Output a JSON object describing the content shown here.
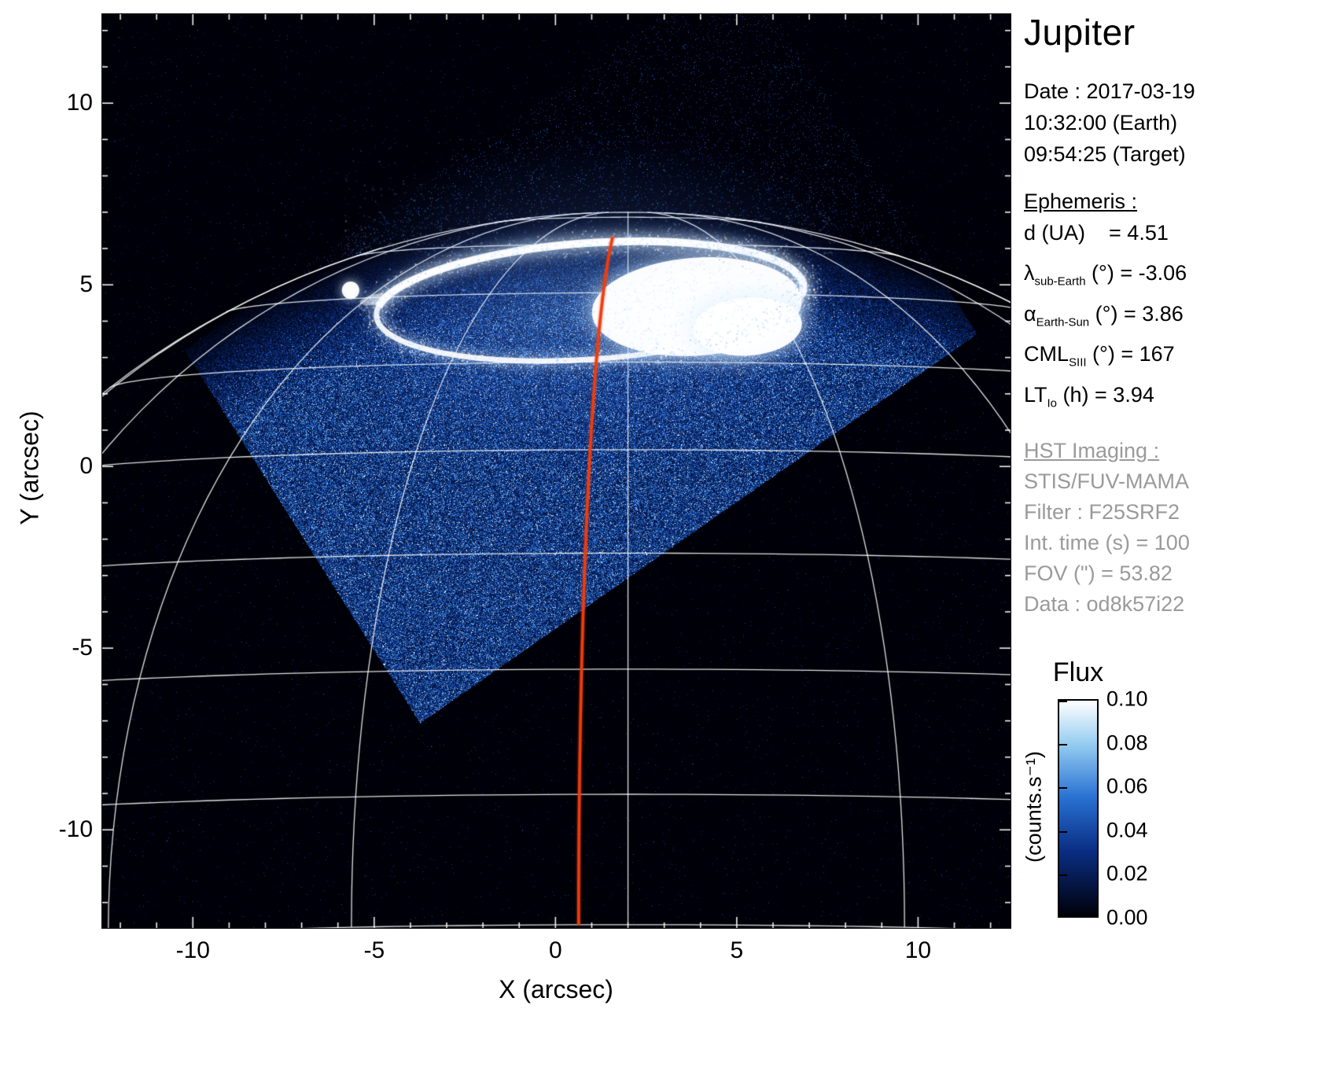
{
  "panel": {
    "title": "Jupiter",
    "date_lines": [
      "Date : 2017-03-19",
      "10:32:00 (Earth)",
      "09:54:25 (Target)"
    ],
    "ephemeris": {
      "header": "Ephemeris :",
      "rows": [
        {
          "sym": "d",
          "sub": "",
          "rest": " (UA)    = 4.51"
        },
        {
          "sym": "λ",
          "sub": "sub-Earth",
          "rest": " (°) = -3.06"
        },
        {
          "sym": "α",
          "sub": "Earth-Sun",
          "rest": " (°) = 3.86"
        },
        {
          "sym": "CML",
          "sub": "SIII",
          "rest": " (°) = 167"
        },
        {
          "sym": "LT",
          "sub": "Io",
          "rest": " (h) = 3.94"
        }
      ]
    },
    "hst": {
      "header": "HST Imaging :",
      "lines": [
        "STIS/FUV-MAMA",
        "Filter : F25SRF2",
        "Int. time (s) = 100",
        "FOV (\") = 53.82",
        "Data : od8k57i22"
      ]
    }
  },
  "chart_data": {
    "type": "heatmap",
    "title": "Jupiter",
    "xlabel": "X (arcsec)",
    "ylabel": "Y (arcsec)",
    "axes": {
      "xmin": -12.5,
      "xmax": 12.55,
      "ymin": -12.7,
      "ymax": 12.45,
      "x_ticks": [
        -10,
        -5,
        0,
        5,
        10
      ],
      "y_ticks": [
        10,
        5,
        0,
        -5,
        -10
      ],
      "minor_tick_step": 1
    },
    "colorbar": {
      "title": "Flux",
      "unit": "(counts.s⁻¹)",
      "tick_labels": [
        "0.10",
        "0.08",
        "0.06",
        "0.04",
        "0.02",
        "0.00"
      ],
      "min": 0.0,
      "max": 0.1
    },
    "colormap": {
      "stops": [
        [
          0,
          "#000008"
        ],
        [
          0.3,
          "#0a2d82"
        ],
        [
          0.55,
          "#2871d2"
        ],
        [
          0.8,
          "#96cdf0"
        ],
        [
          1,
          "#ffffff"
        ]
      ]
    },
    "background": "#000000",
    "planet": {
      "center_x": 2.0,
      "center_y": -13.8,
      "r_eq": 22.3,
      "r_pol": 20.8,
      "subearth_lat_deg": -3.06,
      "parallel_step_deg": 10,
      "meridian_step_deg": 20,
      "grid_color": "rgba(255,255,255,0.88)"
    },
    "cml_meridian": {
      "lon_offset_deg": -3.5,
      "lat_max_deg": 72,
      "color": "#ee3d0e"
    },
    "footprint": {
      "corners": [
        [
          -3.73,
          -7.07
        ],
        [
          11.63,
          3.64
        ],
        [
          5.13,
          13.92
        ],
        [
          -10.23,
          3.21
        ]
      ]
    },
    "aurora": {
      "center_x": 0.95,
      "center_y": 4.55,
      "semi_major": 5.9,
      "semi_minor": 1.6,
      "tilt_deg": -4,
      "blob": {
        "x": 3.9,
        "y": 4.4,
        "a": 2.9,
        "b": 1.35
      },
      "blob2": {
        "x": 5.3,
        "y": 3.85,
        "a": 1.5,
        "b": 0.8
      },
      "io_spot": {
        "x": -5.65,
        "y": 4.85,
        "r": 0.24
      }
    }
  }
}
